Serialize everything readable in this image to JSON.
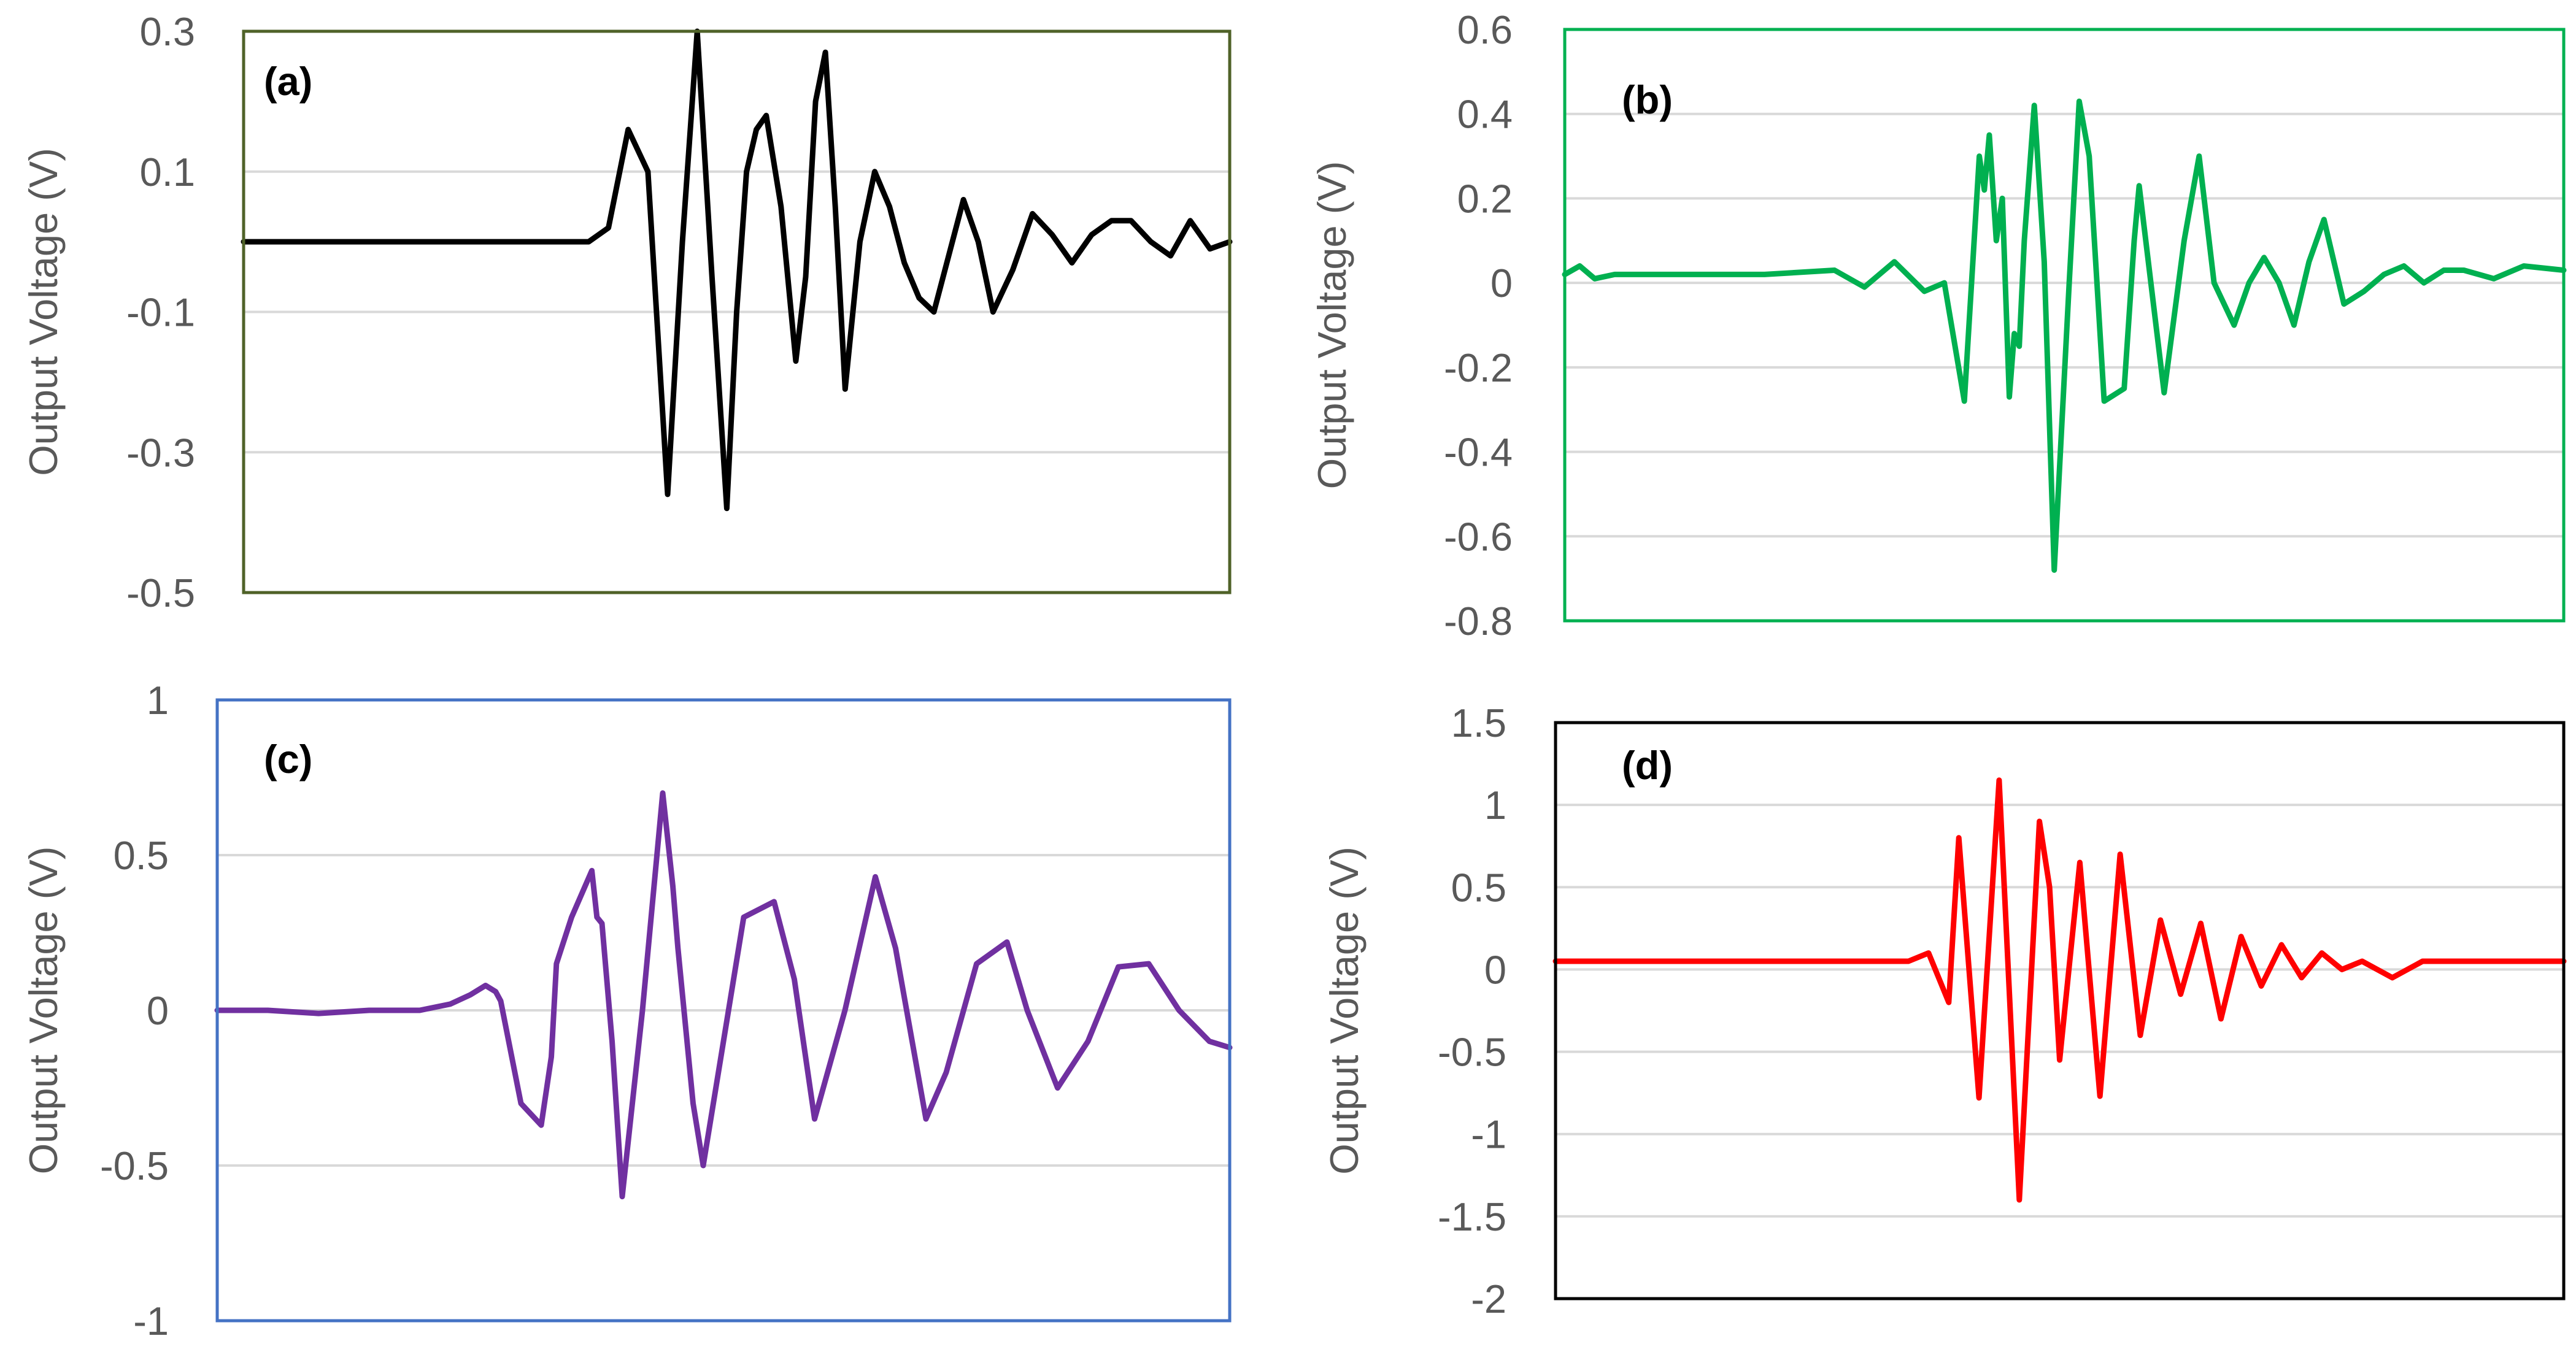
{
  "chart_data": [
    {
      "type": "line",
      "panel_label": "(a)",
      "ylabel": "Output Voltage (V)",
      "xlabel": "",
      "ylim": [
        -0.5,
        0.3
      ],
      "yticks": [
        0.3,
        0.1,
        -0.1,
        -0.3,
        -0.5
      ],
      "ytick_labels": [
        "0.3",
        "0.1",
        "-0.1",
        "-0.3",
        "-0.5"
      ],
      "frame_color": "#4f6228",
      "line_color": "#000000",
      "series": [
        {
          "name": "(a)",
          "x": [
            0,
            0.2,
            0.35,
            0.37,
            0.39,
            0.41,
            0.43,
            0.445,
            0.46,
            0.475,
            0.49,
            0.5,
            0.51,
            0.52,
            0.53,
            0.545,
            0.56,
            0.57,
            0.58,
            0.59,
            0.6,
            0.61,
            0.625,
            0.64,
            0.655,
            0.67,
            0.685,
            0.7,
            0.715,
            0.73,
            0.745,
            0.76,
            0.78,
            0.8,
            0.82,
            0.84,
            0.86,
            0.88,
            0.9,
            0.92,
            0.94,
            0.96,
            0.98,
            1.0
          ],
          "y": [
            0,
            0,
            0,
            0.02,
            0.16,
            0.1,
            -0.36,
            0.0,
            0.3,
            -0.05,
            -0.38,
            -0.1,
            0.1,
            0.16,
            0.18,
            0.05,
            -0.17,
            -0.05,
            0.2,
            0.27,
            0.05,
            -0.21,
            0.0,
            0.1,
            0.05,
            -0.03,
            -0.08,
            -0.1,
            -0.02,
            0.06,
            0.0,
            -0.1,
            -0.04,
            0.04,
            0.01,
            -0.03,
            0.01,
            0.03,
            0.03,
            0.0,
            -0.02,
            0.03,
            -0.01,
            0.0
          ]
        }
      ]
    },
    {
      "type": "line",
      "panel_label": "(b)",
      "ylabel": "Output Voltage (V)",
      "xlabel": "",
      "ylim": [
        -0.8,
        0.6
      ],
      "yticks": [
        0.6,
        0.4,
        0.2,
        0,
        -0.2,
        -0.4,
        -0.6,
        -0.8
      ],
      "ytick_labels": [
        "0.6",
        "0.4",
        "0.2",
        "0",
        "-0.2",
        "-0.4",
        "-0.6",
        "-0.8"
      ],
      "frame_color": "#00b050",
      "line_color": "#00b050",
      "series": [
        {
          "name": "(b)",
          "x": [
            0,
            0.015,
            0.03,
            0.05,
            0.1,
            0.2,
            0.27,
            0.3,
            0.33,
            0.36,
            0.38,
            0.4,
            0.415,
            0.42,
            0.425,
            0.432,
            0.438,
            0.445,
            0.45,
            0.455,
            0.46,
            0.47,
            0.48,
            0.49,
            0.505,
            0.515,
            0.525,
            0.54,
            0.56,
            0.57,
            0.575,
            0.6,
            0.62,
            0.635,
            0.65,
            0.67,
            0.685,
            0.7,
            0.715,
            0.73,
            0.745,
            0.76,
            0.78,
            0.8,
            0.82,
            0.84,
            0.86,
            0.88,
            0.9,
            0.93,
            0.96,
            1.0
          ],
          "y": [
            0.02,
            0.04,
            0.01,
            0.02,
            0.02,
            0.02,
            0.03,
            -0.01,
            0.05,
            -0.02,
            0.0,
            -0.28,
            0.3,
            0.22,
            0.35,
            0.1,
            0.2,
            -0.27,
            -0.12,
            -0.15,
            0.1,
            0.42,
            0.05,
            -0.68,
            0.0,
            0.43,
            0.3,
            -0.28,
            -0.25,
            0.1,
            0.23,
            -0.26,
            0.1,
            0.3,
            0.0,
            -0.1,
            0.0,
            0.06,
            0.0,
            -0.1,
            0.05,
            0.15,
            -0.05,
            -0.02,
            0.02,
            0.04,
            0.0,
            0.03,
            0.03,
            0.01,
            0.04,
            0.03
          ]
        }
      ]
    },
    {
      "type": "line",
      "panel_label": "(c)",
      "ylabel": "Output Voltage (V)",
      "xlabel": "",
      "ylim": [
        -1,
        1
      ],
      "yticks": [
        1,
        0.5,
        0,
        -0.5,
        -1
      ],
      "ytick_labels": [
        "1",
        "0.5",
        "0",
        "-0.5",
        "-1"
      ],
      "frame_color": "#4472c4",
      "line_color": "#7030a0",
      "series": [
        {
          "name": "(c)",
          "x": [
            0,
            0.05,
            0.1,
            0.15,
            0.2,
            0.23,
            0.25,
            0.265,
            0.275,
            0.28,
            0.3,
            0.32,
            0.33,
            0.335,
            0.34,
            0.35,
            0.37,
            0.375,
            0.38,
            0.39,
            0.4,
            0.42,
            0.44,
            0.45,
            0.455,
            0.47,
            0.48,
            0.5,
            0.52,
            0.55,
            0.57,
            0.59,
            0.62,
            0.65,
            0.67,
            0.7,
            0.72,
            0.75,
            0.78,
            0.8,
            0.83,
            0.86,
            0.89,
            0.92,
            0.95,
            0.98,
            1.0
          ],
          "y": [
            0,
            0,
            -0.01,
            0,
            0,
            0.02,
            0.05,
            0.08,
            0.06,
            0.03,
            -0.3,
            -0.37,
            -0.15,
            0.15,
            0.2,
            0.3,
            0.45,
            0.3,
            0.28,
            -0.1,
            -0.6,
            0.0,
            0.7,
            0.4,
            0.2,
            -0.3,
            -0.5,
            -0.1,
            0.3,
            0.35,
            0.1,
            -0.35,
            0.0,
            0.43,
            0.2,
            -0.35,
            -0.2,
            0.15,
            0.22,
            0.0,
            -0.25,
            -0.1,
            0.14,
            0.15,
            0.0,
            -0.1,
            -0.12
          ]
        }
      ]
    },
    {
      "type": "line",
      "panel_label": "(d)",
      "ylabel": "Output Voltage (V)",
      "xlabel": "",
      "ylim": [
        -2,
        1.5
      ],
      "yticks": [
        1.5,
        1,
        0.5,
        0,
        -0.5,
        -1,
        -1.5,
        -2
      ],
      "ytick_labels": [
        "1.5",
        "1",
        "0.5",
        "0",
        "-0.5",
        "-1",
        "-1.5",
        "-2"
      ],
      "frame_color": "#000000",
      "line_color": "#ff0000",
      "series": [
        {
          "name": "(d)",
          "x": [
            0,
            0.2,
            0.35,
            0.37,
            0.39,
            0.4,
            0.42,
            0.44,
            0.46,
            0.48,
            0.49,
            0.5,
            0.52,
            0.54,
            0.56,
            0.58,
            0.6,
            0.62,
            0.64,
            0.66,
            0.68,
            0.7,
            0.72,
            0.74,
            0.76,
            0.78,
            0.8,
            0.83,
            0.86,
            0.9,
            0.95,
            1.0
          ],
          "y": [
            0.05,
            0.05,
            0.05,
            0.1,
            -0.2,
            0.8,
            -0.78,
            1.15,
            -1.4,
            0.9,
            0.5,
            -0.55,
            0.65,
            -0.77,
            0.7,
            -0.4,
            0.3,
            -0.15,
            0.28,
            -0.3,
            0.2,
            -0.1,
            0.15,
            -0.05,
            0.1,
            0.0,
            0.05,
            -0.05,
            0.05,
            0.05,
            0.05,
            0.05
          ]
        }
      ]
    }
  ]
}
